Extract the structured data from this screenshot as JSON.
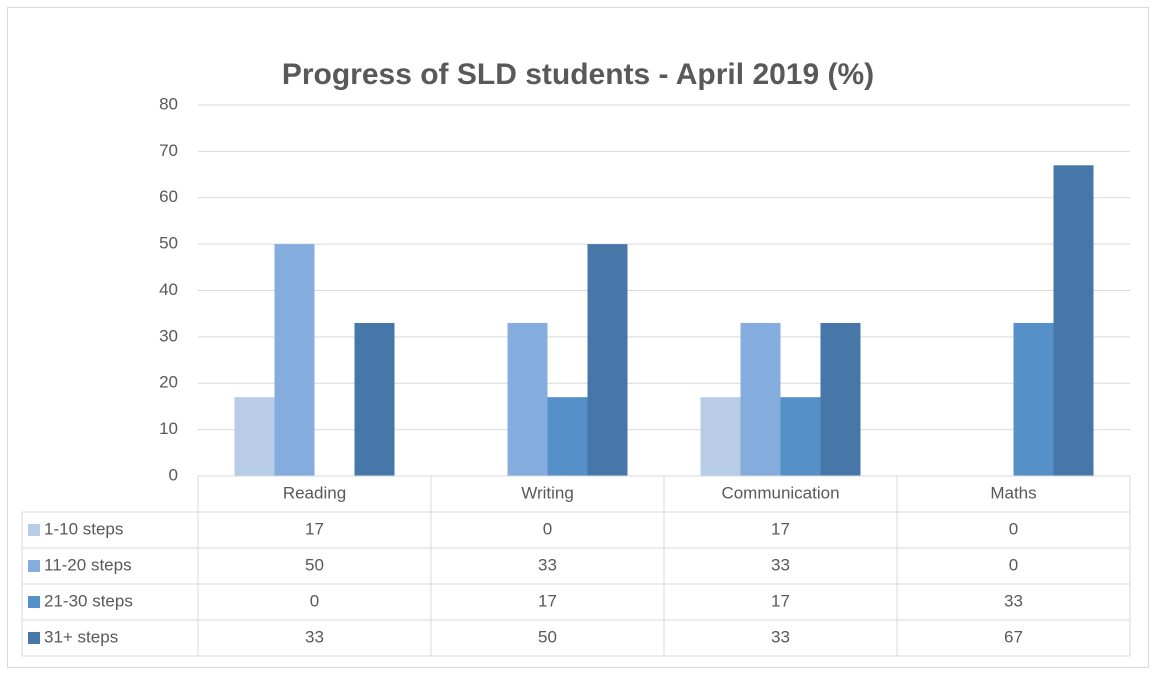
{
  "chart_data": {
    "type": "bar",
    "title": "Progress of SLD students - April 2019 (%)",
    "categories": [
      "Reading",
      "Writing",
      "Communication",
      "Maths"
    ],
    "series": [
      {
        "name": "1-10 steps",
        "color": "#b8cce8",
        "values": [
          17,
          0,
          17,
          0
        ]
      },
      {
        "name": "11-20 steps",
        "color": "#84acdc",
        "values": [
          50,
          33,
          33,
          0
        ]
      },
      {
        "name": "21-30 steps",
        "color": "#5590c8",
        "values": [
          0,
          17,
          17,
          33
        ]
      },
      {
        "name": "31+ steps",
        "color": "#4677a8",
        "values": [
          33,
          50,
          33,
          67
        ]
      }
    ],
    "ylim": [
      0,
      80
    ],
    "yticks": [
      0,
      10,
      20,
      30,
      40,
      50,
      60,
      70,
      80
    ],
    "grid": true
  }
}
